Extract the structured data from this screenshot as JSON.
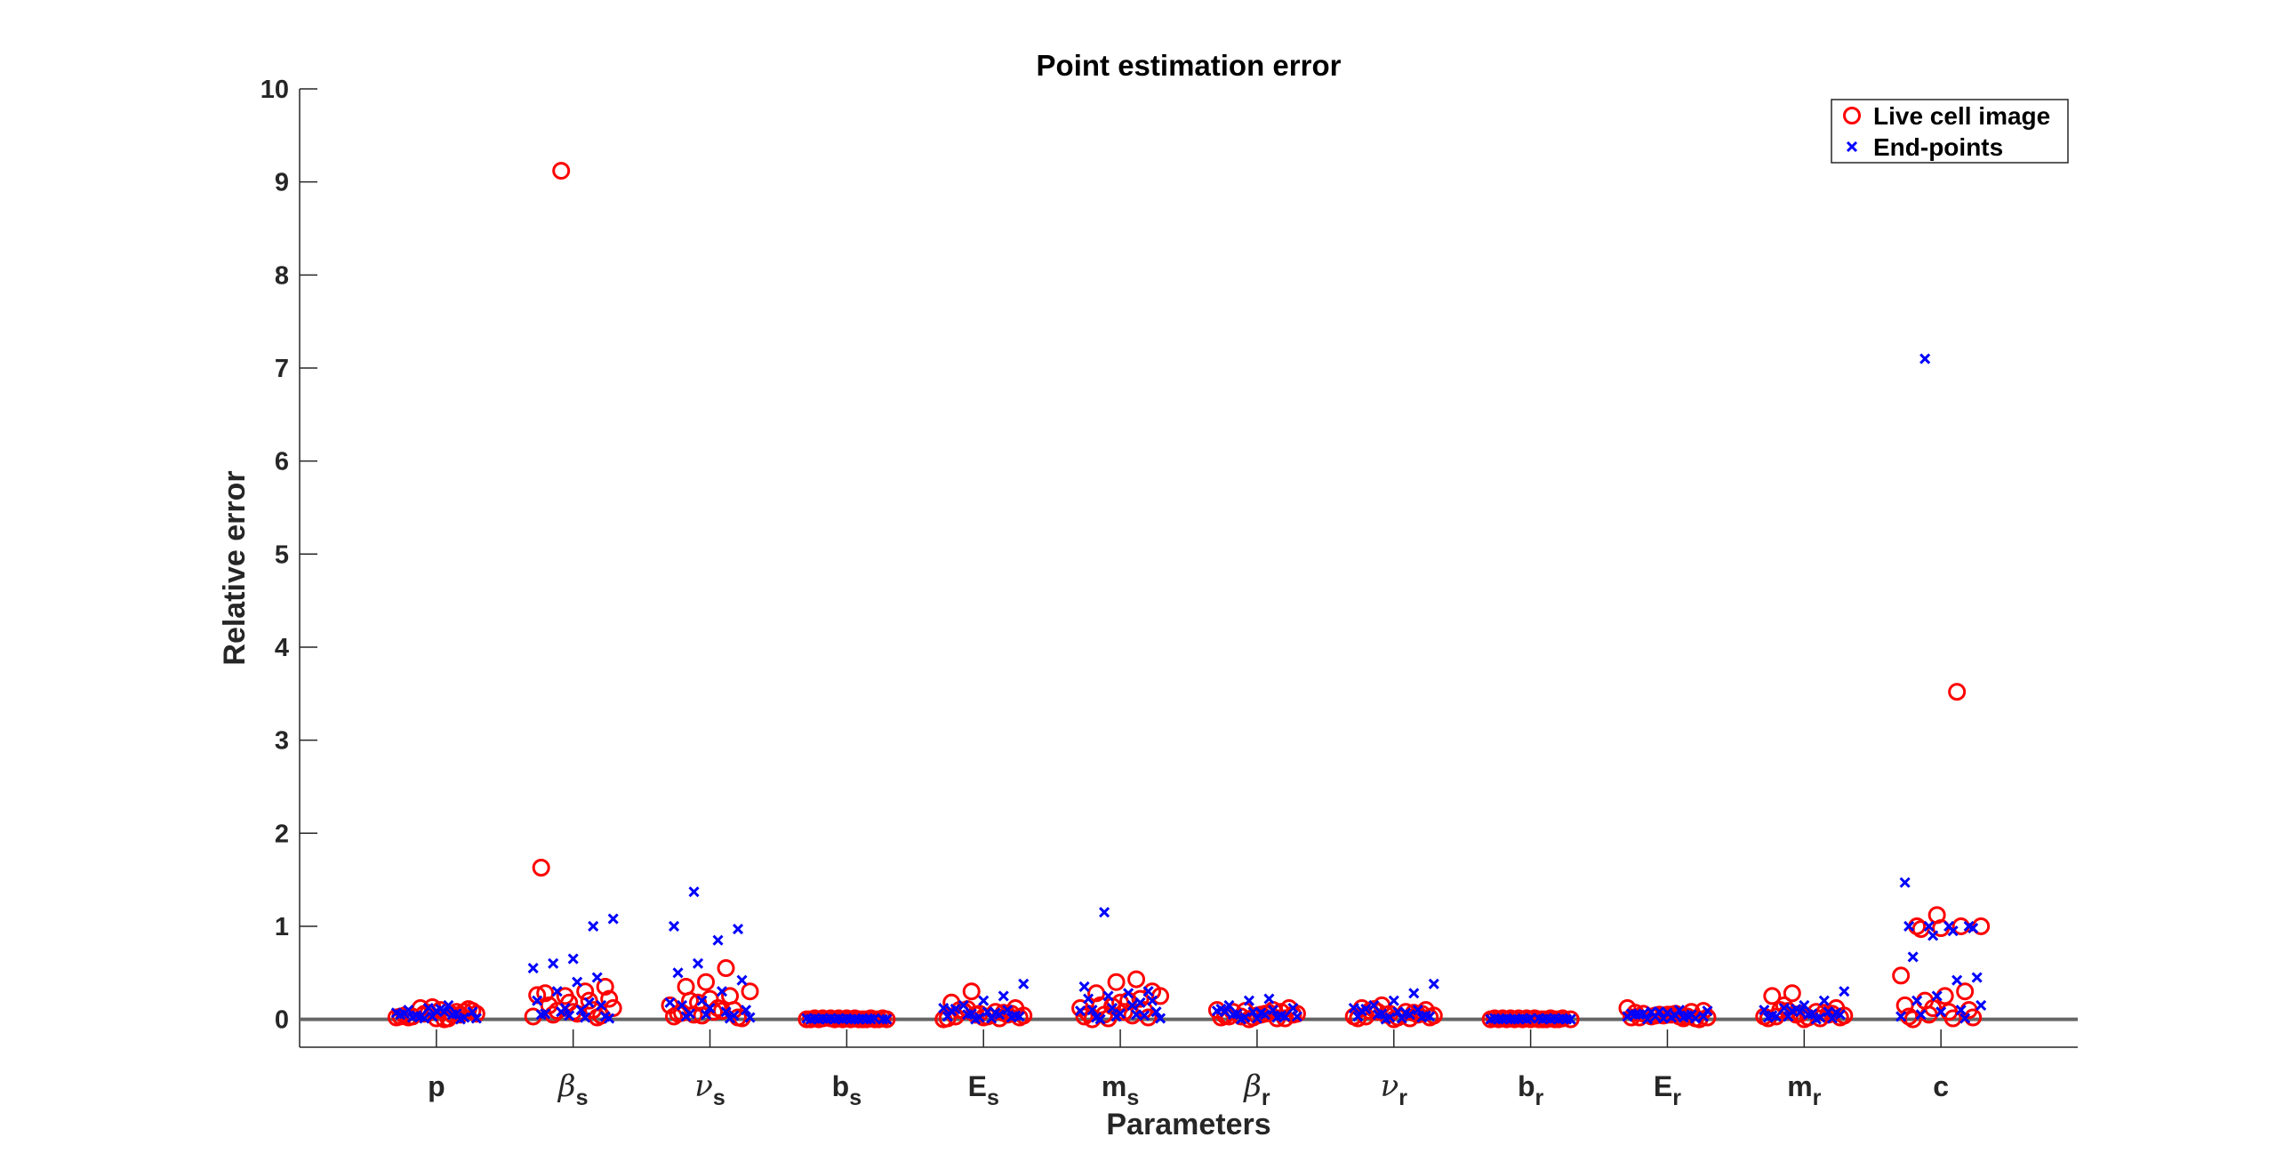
{
  "chart_data": {
    "type": "scatter",
    "title": "Point estimation error",
    "xlabel": "Parameters",
    "ylabel": "Relative error",
    "ylim": [
      -0.3,
      10
    ],
    "yticks": [
      0,
      1,
      2,
      3,
      4,
      5,
      6,
      7,
      8,
      9,
      10
    ],
    "ytick_labels": [
      "0",
      "1",
      "2",
      "3",
      "4",
      "5",
      "6",
      "7",
      "8",
      "9",
      "10"
    ],
    "reference_line": 0,
    "grid": false,
    "legend_position": "top-right",
    "categories": [
      {
        "base": "p",
        "sub": "",
        "greek": false
      },
      {
        "base": "β",
        "sub": "s",
        "greek": true
      },
      {
        "base": "ν",
        "sub": "s",
        "greek": true
      },
      {
        "base": "b",
        "sub": "s",
        "greek": false
      },
      {
        "base": "E",
        "sub": "s",
        "greek": false
      },
      {
        "base": "m",
        "sub": "s",
        "greek": false
      },
      {
        "base": "β",
        "sub": "r",
        "greek": true
      },
      {
        "base": "ν",
        "sub": "r",
        "greek": true
      },
      {
        "base": "b",
        "sub": "r",
        "greek": false
      },
      {
        "base": "E",
        "sub": "r",
        "greek": false
      },
      {
        "base": "m",
        "sub": "r",
        "greek": false
      },
      {
        "base": "c",
        "sub": "",
        "greek": false
      }
    ],
    "series": [
      {
        "name": "Live cell image",
        "marker": "circle",
        "color": "#ff0000",
        "values": [
          [
            0.02,
            0.05,
            0.1,
            0.12,
            0.03,
            0.08,
            0.0,
            0.06,
            0.04,
            0.11,
            0.01,
            0.07,
            0.02,
            0.09,
            0.05,
            0.13,
            0.03,
            0.06,
            0.08,
            0.01
          ],
          [
            9.12,
            1.63,
            0.35,
            0.3,
            0.25,
            0.28,
            0.22,
            0.2,
            0.18,
            0.15,
            0.12,
            0.1,
            0.08,
            0.05,
            0.03,
            0.02,
            0.06,
            0.09,
            0.26,
            0.04
          ],
          [
            0.55,
            0.4,
            0.35,
            0.3,
            0.25,
            0.22,
            0.2,
            0.15,
            0.1,
            0.08,
            0.05,
            0.03,
            0.02,
            0.12,
            0.18,
            0.06,
            0.01,
            0.09,
            0.04,
            0.07
          ],
          [
            0.0,
            0.01,
            0.0,
            0.01,
            0.0,
            0.0,
            0.01,
            0.0,
            0.01,
            0.0,
            0.0,
            0.01,
            0.0,
            0.01,
            0.0,
            0.0,
            0.01,
            0.0,
            0.0,
            0.01
          ],
          [
            0.3,
            0.18,
            0.12,
            0.08,
            0.05,
            0.03,
            0.02,
            0.01,
            0.06,
            0.1,
            0.04,
            0.07,
            0.02,
            0.09,
            0.0,
            0.05,
            0.03,
            0.11,
            0.01,
            0.06
          ],
          [
            0.43,
            0.4,
            0.28,
            0.25,
            0.22,
            0.18,
            0.15,
            0.12,
            0.1,
            0.08,
            0.05,
            0.03,
            0.02,
            0.2,
            0.01,
            0.06,
            0.3,
            0.04,
            0.14,
            0.0
          ],
          [
            0.1,
            0.08,
            0.05,
            0.03,
            0.02,
            0.01,
            0.06,
            0.09,
            0.04,
            0.12,
            0.07,
            0.0,
            0.03,
            0.05,
            0.1,
            0.02,
            0.08,
            0.06,
            0.01,
            0.04
          ],
          [
            0.15,
            0.12,
            0.1,
            0.08,
            0.05,
            0.03,
            0.02,
            0.01,
            0.06,
            0.09,
            0.04,
            0.07,
            0.0,
            0.11,
            0.03,
            0.05,
            0.02,
            0.08,
            0.01,
            0.06
          ],
          [
            0.0,
            0.01,
            0.0,
            0.0,
            0.01,
            0.0,
            0.01,
            0.0,
            0.0,
            0.01,
            0.0,
            0.01,
            0.0,
            0.0,
            0.01,
            0.0,
            0.01,
            0.0,
            0.0,
            0.01
          ],
          [
            0.12,
            0.08,
            0.05,
            0.03,
            0.02,
            0.01,
            0.06,
            0.04,
            0.07,
            0.0,
            0.03,
            0.05,
            0.02,
            0.09,
            0.01,
            0.04,
            0.06,
            0.02,
            0.03,
            0.05
          ],
          [
            0.28,
            0.25,
            0.12,
            0.08,
            0.05,
            0.03,
            0.02,
            0.01,
            0.06,
            0.1,
            0.04,
            0.07,
            0.0,
            0.15,
            0.03,
            0.05,
            0.02,
            0.09,
            0.01,
            0.06
          ],
          [
            3.52,
            1.12,
            1.0,
            1.0,
            1.0,
            0.98,
            0.97,
            0.47,
            0.3,
            0.25,
            0.2,
            0.15,
            0.1,
            0.08,
            0.05,
            0.03,
            0.02,
            0.01,
            0.12,
            0.0
          ]
        ]
      },
      {
        "name": "End-points",
        "marker": "x",
        "color": "#0000ff",
        "values": [
          [
            0.15,
            0.12,
            0.1,
            0.08,
            0.05,
            0.03,
            0.02,
            0.01,
            0.06,
            0.09,
            0.04,
            0.07,
            0.0,
            0.11,
            0.03,
            0.05,
            0.02,
            0.08,
            0.01,
            0.06
          ],
          [
            1.08,
            1.0,
            0.65,
            0.6,
            0.55,
            0.45,
            0.4,
            0.3,
            0.2,
            0.15,
            0.1,
            0.08,
            0.05,
            0.03,
            0.02,
            0.12,
            0.06,
            0.01,
            0.18,
            0.04
          ],
          [
            1.37,
            1.0,
            0.97,
            0.85,
            0.6,
            0.5,
            0.42,
            0.3,
            0.2,
            0.15,
            0.1,
            0.08,
            0.05,
            0.03,
            0.02,
            0.01,
            0.12,
            0.06,
            0.18,
            0.04
          ],
          [
            0.0,
            0.01,
            0.0,
            0.0,
            0.01,
            0.0,
            0.01,
            0.0,
            0.0,
            0.01,
            0.0,
            0.01,
            0.0,
            0.0,
            0.01,
            0.0,
            0.01,
            0.0,
            0.0,
            0.01
          ],
          [
            0.38,
            0.25,
            0.2,
            0.15,
            0.12,
            0.1,
            0.08,
            0.05,
            0.03,
            0.02,
            0.01,
            0.06,
            0.09,
            0.04,
            0.07,
            0.0,
            0.11,
            0.03,
            0.05,
            0.02
          ],
          [
            1.15,
            0.35,
            0.3,
            0.28,
            0.25,
            0.22,
            0.2,
            0.15,
            0.12,
            0.1,
            0.08,
            0.05,
            0.03,
            0.02,
            0.01,
            0.18,
            0.06,
            0.0,
            0.09,
            0.04
          ],
          [
            0.22,
            0.2,
            0.15,
            0.12,
            0.1,
            0.08,
            0.05,
            0.03,
            0.02,
            0.01,
            0.06,
            0.09,
            0.04,
            0.07,
            0.0,
            0.11,
            0.03,
            0.05,
            0.02,
            0.08
          ],
          [
            0.38,
            0.28,
            0.2,
            0.15,
            0.12,
            0.1,
            0.08,
            0.05,
            0.03,
            0.02,
            0.01,
            0.06,
            0.09,
            0.04,
            0.07,
            0.0,
            0.11,
            0.03,
            0.05,
            0.02
          ],
          [
            0.0,
            0.01,
            0.0,
            0.01,
            0.0,
            0.0,
            0.01,
            0.0,
            0.01,
            0.0,
            0.0,
            0.01,
            0.0,
            0.01,
            0.0,
            0.0,
            0.01,
            0.0,
            0.0,
            0.01
          ],
          [
            0.1,
            0.08,
            0.05,
            0.03,
            0.02,
            0.01,
            0.06,
            0.09,
            0.04,
            0.07,
            0.0,
            0.03,
            0.05,
            0.02,
            0.08,
            0.06,
            0.01,
            0.04,
            0.03,
            0.05
          ],
          [
            0.3,
            0.2,
            0.15,
            0.12,
            0.1,
            0.08,
            0.05,
            0.03,
            0.02,
            0.01,
            0.06,
            0.09,
            0.04,
            0.07,
            0.0,
            0.11,
            0.03,
            0.05,
            0.02,
            0.08
          ],
          [
            7.1,
            1.47,
            1.0,
            1.0,
            1.0,
            1.0,
            0.98,
            0.95,
            0.9,
            0.67,
            0.45,
            0.42,
            0.25,
            0.2,
            0.15,
            0.1,
            0.08,
            0.05,
            0.03,
            0.01
          ]
        ]
      }
    ]
  }
}
